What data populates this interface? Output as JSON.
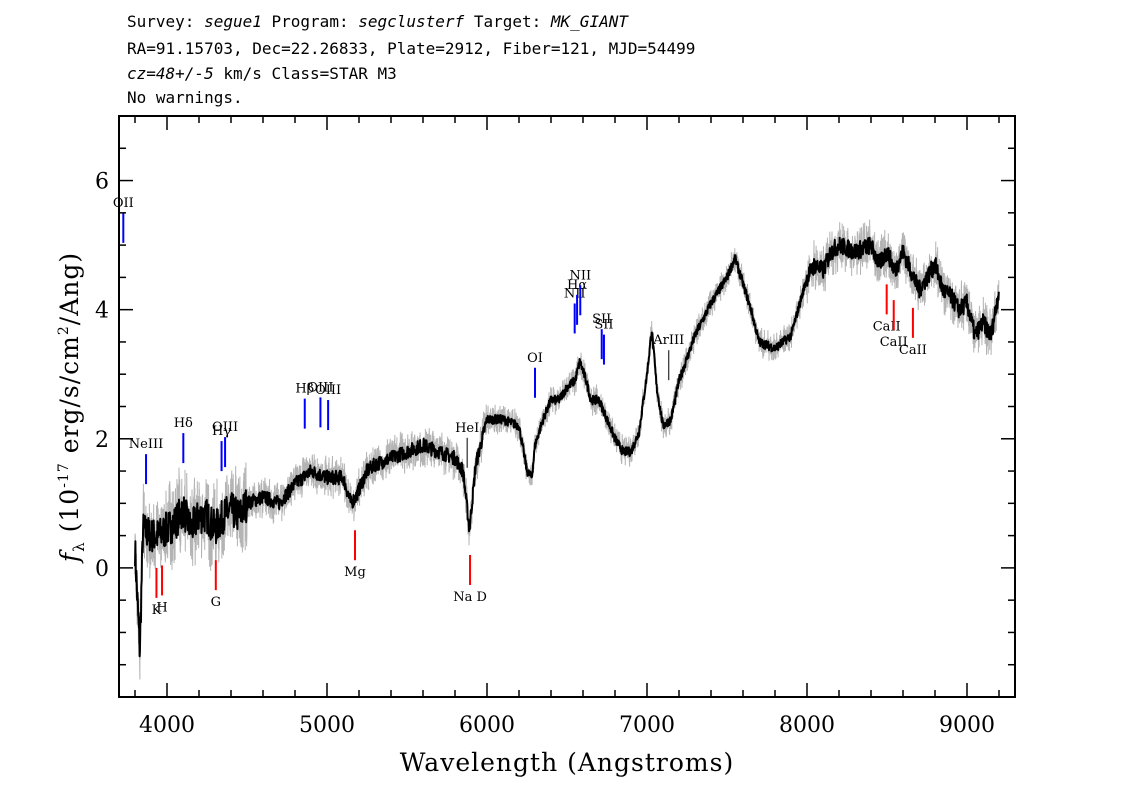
{
  "header": {
    "line1": {
      "survey_key": "Survey:",
      "survey": "segue1",
      "program_key": "Program:",
      "program": "segclusterf",
      "target_key": "Target:",
      "target": "MK_GIANT"
    },
    "line2": "RA=91.15703, Dec=22.26833, Plate=2912, Fiber=121, MJD=54499",
    "line3": {
      "cz": "cz=48+/-5",
      "rest": "km/s Class=STAR M3"
    },
    "line4": "No warnings."
  },
  "colors": {
    "flux": "#000000",
    "noise": "#b4b4b4",
    "emission": "#0000ff",
    "absorption": "#ff0000",
    "sky": "#000000"
  },
  "chart_data": {
    "type": "line",
    "title": "",
    "xlabel": "Wavelength (Angstroms)",
    "ylabel": "f_λ (10^-17 erg/s/cm^2/Ang)",
    "xlim": [
      3700,
      9300
    ],
    "ylim": [
      -2.0,
      7.0
    ],
    "xticks": [
      4000,
      5000,
      6000,
      7000,
      8000,
      9000
    ],
    "yticks": [
      0,
      2,
      4,
      6
    ],
    "grid": false,
    "series": [
      {
        "x": [
          3800,
          3830,
          3850,
          3900,
          3950,
          4000,
          4050,
          4100,
          4150,
          4200,
          4250,
          4300,
          4350,
          4400,
          4450,
          4500,
          4600,
          4700,
          4800,
          4900,
          5000,
          5100,
          5150,
          5180,
          5250,
          5300,
          5400,
          5500,
          5600,
          5700,
          5800,
          5850,
          5890,
          5930,
          6000,
          6100,
          6200,
          6250,
          6280,
          6300,
          6350,
          6400,
          6450,
          6500,
          6550,
          6580,
          6620,
          6650,
          6700,
          6750,
          6800,
          6850,
          6900,
          6950,
          7000,
          7030,
          7060,
          7080,
          7100,
          7150,
          7200,
          7300,
          7400,
          7500,
          7550,
          7600,
          7650,
          7700,
          7800,
          7900,
          8000,
          8050,
          8100,
          8150,
          8200,
          8300,
          8400,
          8450,
          8500,
          8550,
          8600,
          8650,
          8700,
          8750,
          8800,
          8850,
          8900,
          8950,
          9000,
          9050,
          9100,
          9150,
          9200
        ],
        "y": [
          0.3,
          -1.3,
          0.6,
          0.5,
          0.5,
          0.6,
          0.7,
          0.9,
          0.6,
          0.8,
          0.8,
          0.6,
          0.8,
          0.9,
          0.8,
          1.0,
          1.1,
          1.0,
          1.3,
          1.5,
          1.4,
          1.4,
          1.0,
          1.1,
          1.5,
          1.6,
          1.7,
          1.8,
          1.9,
          1.8,
          1.7,
          1.5,
          0.6,
          1.6,
          2.3,
          2.3,
          2.2,
          1.5,
          1.4,
          1.9,
          2.3,
          2.6,
          2.6,
          2.8,
          2.9,
          3.2,
          2.9,
          2.6,
          2.6,
          2.3,
          2.0,
          1.8,
          1.8,
          2.1,
          3.0,
          3.7,
          2.8,
          2.5,
          2.2,
          2.3,
          2.9,
          3.6,
          4.1,
          4.5,
          4.8,
          4.4,
          4.0,
          3.5,
          3.4,
          3.6,
          4.5,
          4.7,
          4.6,
          4.9,
          5.0,
          4.9,
          5.0,
          4.7,
          4.9,
          4.6,
          4.9,
          4.6,
          4.3,
          4.5,
          4.7,
          4.3,
          4.2,
          4.0,
          4.1,
          3.6,
          3.8,
          3.6,
          4.3
        ]
      }
    ],
    "emission_lines": [
      {
        "label": "OII",
        "x": 3727
      },
      {
        "label": "NeIII",
        "x": 3869
      },
      {
        "label": "Hδ",
        "x": 4102
      },
      {
        "label": "Hγ",
        "x": 4341
      },
      {
        "label": "OIII",
        "x": 4363
      },
      {
        "label": "Hβ",
        "x": 4861
      },
      {
        "label": "OIII",
        "x": 4959
      },
      {
        "label": "OIII",
        "x": 5007
      },
      {
        "label": "OI",
        "x": 6300
      },
      {
        "label": "NII",
        "x": 6548
      },
      {
        "label": "Hα",
        "x": 6563
      },
      {
        "label": "NII",
        "x": 6583
      },
      {
        "label": "SII",
        "x": 6717
      },
      {
        "label": "SII",
        "x": 6731
      }
    ],
    "absorption_lines": [
      {
        "label": "K",
        "x": 3934
      },
      {
        "label": "H",
        "x": 3969
      },
      {
        "label": "G",
        "x": 4305
      },
      {
        "label": "Mg",
        "x": 5175
      },
      {
        "label": "Na D",
        "x": 5894
      },
      {
        "label": "CaII",
        "x": 8498
      },
      {
        "label": "CaII",
        "x": 8542
      },
      {
        "label": "CaII",
        "x": 8662
      }
    ],
    "sky_lines": [
      {
        "label": "HeI",
        "x": 5876
      },
      {
        "label": "ArIII",
        "x": 7136
      }
    ]
  }
}
